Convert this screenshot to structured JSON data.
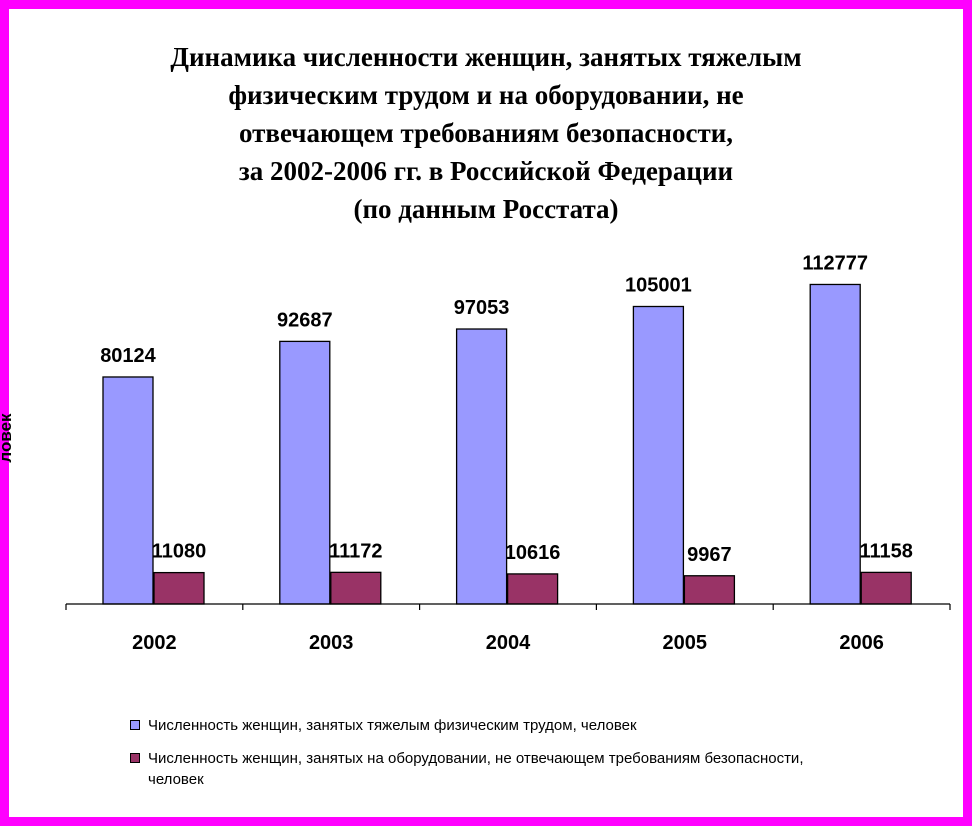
{
  "chart_data": {
    "type": "bar",
    "title_lines": [
      "Динамика численности женщин, занятых тяжелым",
      "физическим трудом и на оборудовании, не",
      "отвечающем требованиям безопасности,",
      "за 2002-2006 гг. в Российской Федерации",
      "(по данным Росстата)"
    ],
    "ylabel": "ловек",
    "categories": [
      "2002",
      "2003",
      "2004",
      "2005",
      "2006"
    ],
    "series": [
      {
        "name": "Численность женщин, занятых тяжелым физическим трудом, человек",
        "values": [
          80124,
          92687,
          97053,
          105001,
          112777
        ],
        "value_labels": [
          "80124",
          "92687",
          "97053",
          "105001",
          "112777"
        ],
        "color": "#9999ff"
      },
      {
        "name": "Численность женщин, занятых на оборудовании, не отвечающем требованиям безопасности, человек",
        "values": [
          11080,
          11172,
          10616,
          9967,
          11158
        ],
        "value_labels": [
          "11080",
          "11172",
          "10616",
          "9967",
          "11158"
        ],
        "color": "#993366"
      }
    ],
    "ylim": [
      0,
      120000
    ],
    "grid": false,
    "legend_position": "bottom"
  },
  "colors": {
    "frame": "#ff00ff"
  }
}
